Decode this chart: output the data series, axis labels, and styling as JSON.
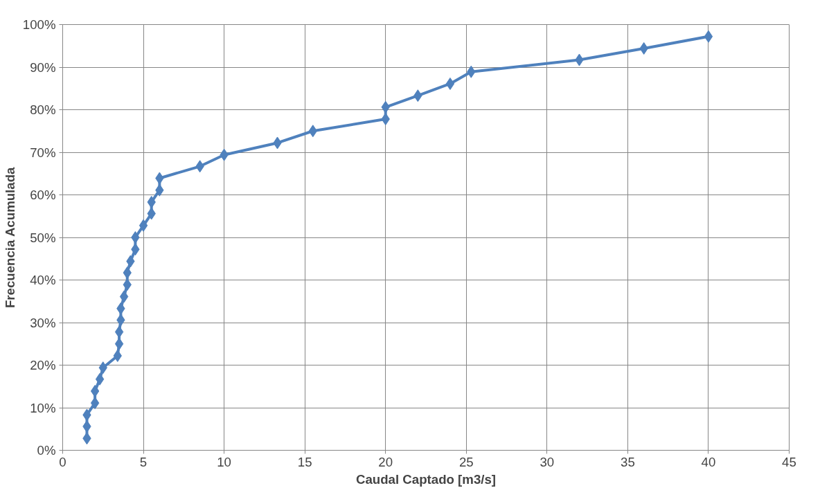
{
  "chart_data": {
    "type": "line",
    "xlabel": "Caudal Captado [m3/s]",
    "ylabel": "Frecuencia Acumulada",
    "x": [
      1.5,
      1.5,
      1.5,
      2.0,
      2.0,
      2.3,
      2.5,
      3.4,
      3.5,
      3.5,
      3.6,
      3.6,
      3.8,
      4.0,
      4.0,
      4.2,
      4.5,
      4.5,
      5.0,
      5.5,
      5.5,
      6.0,
      6.0,
      8.5,
      10.0,
      13.3,
      15.5,
      20.0,
      20.0,
      22.0,
      24.0,
      25.3,
      32.0,
      36.0,
      40.0
    ],
    "series": [
      {
        "color": "#4f81bd",
        "values": [
          2.8,
          5.6,
          8.3,
          11.1,
          13.9,
          16.7,
          19.4,
          22.2,
          25.0,
          27.8,
          30.6,
          33.3,
          36.1,
          38.9,
          41.7,
          44.4,
          47.2,
          50.0,
          52.8,
          55.6,
          58.3,
          61.1,
          63.9,
          66.7,
          69.4,
          72.2,
          75.0,
          77.8,
          80.6,
          83.3,
          86.1,
          88.9,
          91.7,
          94.4,
          97.2
        ]
      }
    ],
    "xlim": [
      0,
      45
    ],
    "xticks": [
      0,
      5,
      10,
      15,
      20,
      25,
      30,
      35,
      40,
      45
    ],
    "ylim": [
      0,
      100
    ],
    "yticks": [
      {
        "value": 0,
        "label": "0%"
      },
      {
        "value": 10,
        "label": "10%"
      },
      {
        "value": 20,
        "label": "20%"
      },
      {
        "value": 30,
        "label": "30%"
      },
      {
        "value": 40,
        "label": "40%"
      },
      {
        "value": 50,
        "label": "50%"
      },
      {
        "value": 60,
        "label": "60%"
      },
      {
        "value": 70,
        "label": "70%"
      },
      {
        "value": 80,
        "label": "80%"
      },
      {
        "value": 90,
        "label": "90%"
      },
      {
        "value": 100,
        "label": "100%"
      }
    ],
    "grid": true,
    "marker": "diamond",
    "line_style": "solid"
  }
}
